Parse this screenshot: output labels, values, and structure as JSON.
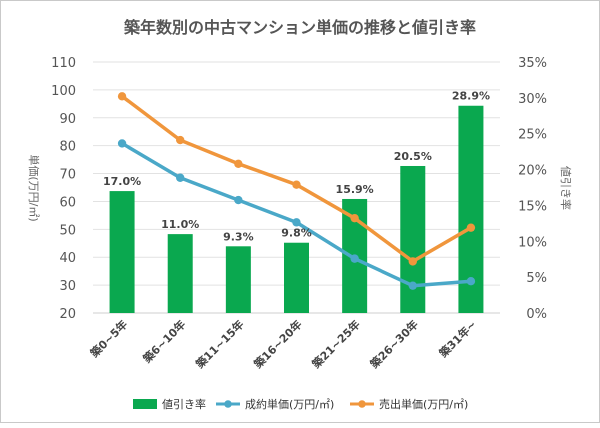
{
  "chart_data": {
    "type": "bar",
    "title": "築年数別の中古マンション単価の推移と値引き率",
    "ylabel_left": "単価(万円/㎡)",
    "ylabel_right": "値引き率",
    "ylim_left": [
      20,
      110
    ],
    "ylim_right": [
      0,
      35
    ],
    "yticks_left": [
      "110",
      "100",
      "90",
      "80",
      "70",
      "60",
      "50",
      "40",
      "30",
      "20"
    ],
    "yticks_right": [
      "35%",
      "30%",
      "25%",
      "20%",
      "15%",
      "10%",
      "5%",
      "0%"
    ],
    "categories": [
      "築0~5年",
      "築6~10年",
      "築11~15年",
      "築16~20年",
      "築21~25年",
      "築26~30年",
      "築31年~"
    ],
    "grid": true,
    "legend_position": "bottom",
    "series": [
      {
        "name": "値引き率",
        "kind": "bar",
        "axis": "right",
        "color": "#0aa84f",
        "values": [
          17.0,
          11.0,
          9.3,
          9.8,
          15.9,
          20.5,
          28.9
        ],
        "labels": [
          "17.0%",
          "11.0%",
          "9.3%",
          "9.8%",
          "15.9%",
          "20.5%",
          "28.9%"
        ]
      },
      {
        "name": "成約単価(万円/㎡)",
        "kind": "line",
        "axis": "left",
        "color": "#4aa8c8",
        "values": [
          80.8,
          68.5,
          60.5,
          52.5,
          39.5,
          29.8,
          31.4
        ]
      },
      {
        "name": "売出単価(万円/㎡)",
        "kind": "line",
        "axis": "left",
        "color": "#f0963c",
        "values": [
          97.7,
          82.0,
          73.5,
          66.0,
          54.0,
          38.5,
          50.6
        ]
      }
    ]
  }
}
